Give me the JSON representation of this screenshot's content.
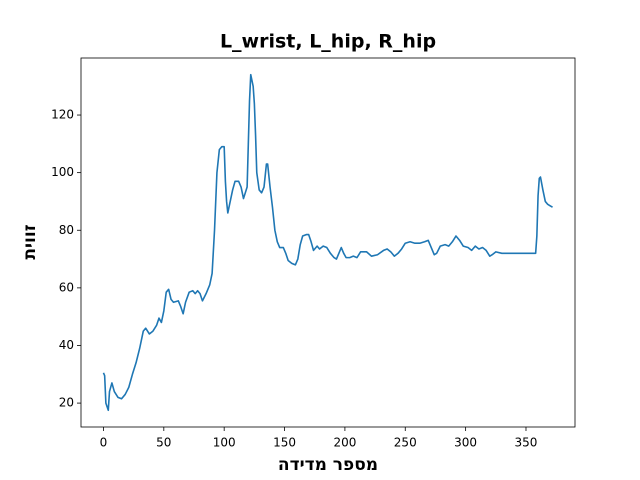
{
  "chart_data": {
    "type": "line",
    "title": "L_wrist, L_hip, R_hip",
    "x_label": "מספר מדידה",
    "y_label": "זווית",
    "color": "#1f77b4",
    "x": [
      0,
      1,
      2,
      4,
      5,
      7,
      9,
      12,
      15,
      18,
      21,
      24,
      27,
      30,
      33,
      35,
      38,
      41,
      44,
      46,
      48,
      50,
      52,
      54,
      56,
      58,
      62,
      64,
      66,
      68,
      71,
      74,
      76,
      78,
      80,
      82,
      85,
      88,
      90,
      92,
      94,
      96,
      98,
      100,
      101,
      102,
      103,
      105,
      107,
      109,
      112,
      114,
      116,
      119,
      120,
      121,
      122,
      124,
      125,
      126,
      127,
      129,
      131,
      133,
      135,
      136,
      138,
      140,
      142,
      144,
      146,
      149,
      151,
      153,
      156,
      159,
      161,
      163,
      165,
      168,
      170,
      172,
      174,
      177,
      179,
      182,
      185,
      188,
      191,
      193,
      195,
      197,
      199,
      201,
      204,
      207,
      210,
      213,
      218,
      222,
      227,
      232,
      235,
      238,
      241,
      244,
      247,
      250,
      254,
      258,
      262,
      266,
      269,
      272,
      274,
      276,
      279,
      283,
      286,
      289,
      292,
      295,
      298,
      302,
      305,
      308,
      311,
      314,
      317,
      320,
      322,
      325,
      330,
      340,
      350,
      358,
      359,
      360,
      361,
      362,
      364,
      366,
      368,
      370,
      372
    ],
    "values": [
      30.5,
      29.5,
      20,
      17.5,
      24,
      27,
      24,
      22,
      21.5,
      23,
      25.5,
      30,
      34,
      39,
      45,
      46,
      44,
      45,
      47,
      49.5,
      48,
      52,
      58.5,
      59.5,
      56,
      55,
      55.5,
      53.5,
      51,
      55,
      58.5,
      59,
      58,
      59,
      58,
      55.5,
      58,
      61,
      65,
      80,
      100,
      108,
      109,
      109,
      97,
      90,
      86,
      90,
      94,
      97,
      97,
      95,
      91,
      95,
      110,
      125,
      134,
      130,
      124,
      113,
      100,
      94,
      93,
      95,
      103,
      103,
      95,
      88,
      80,
      76,
      74,
      74,
      72,
      69.5,
      68.5,
      68,
      70,
      75,
      78,
      78.5,
      78.5,
      76,
      73,
      74.5,
      73.5,
      74.5,
      74,
      72,
      70.5,
      70,
      72,
      74,
      72,
      70.5,
      70.5,
      71,
      70.5,
      72.5,
      72.5,
      71,
      71.5,
      73,
      73.5,
      72.5,
      71,
      72,
      73.5,
      75.5,
      76,
      75.5,
      75.5,
      76,
      76.5,
      73.5,
      71.5,
      72,
      74.5,
      75,
      74.5,
      76,
      78,
      76.5,
      74.5,
      74,
      73,
      74.5,
      73.5,
      74,
      73,
      71,
      71.5,
      72.5,
      72,
      72,
      72,
      72,
      78,
      92,
      98,
      98.5,
      94,
      90,
      89,
      88.5,
      88
    ],
    "xlim": [
      -18.6,
      390.6
    ],
    "ylim": [
      11.7,
      139.8
    ],
    "xticks": [
      0,
      50,
      100,
      150,
      200,
      250,
      300,
      350
    ],
    "yticks": [
      20,
      40,
      60,
      80,
      100,
      120
    ]
  }
}
